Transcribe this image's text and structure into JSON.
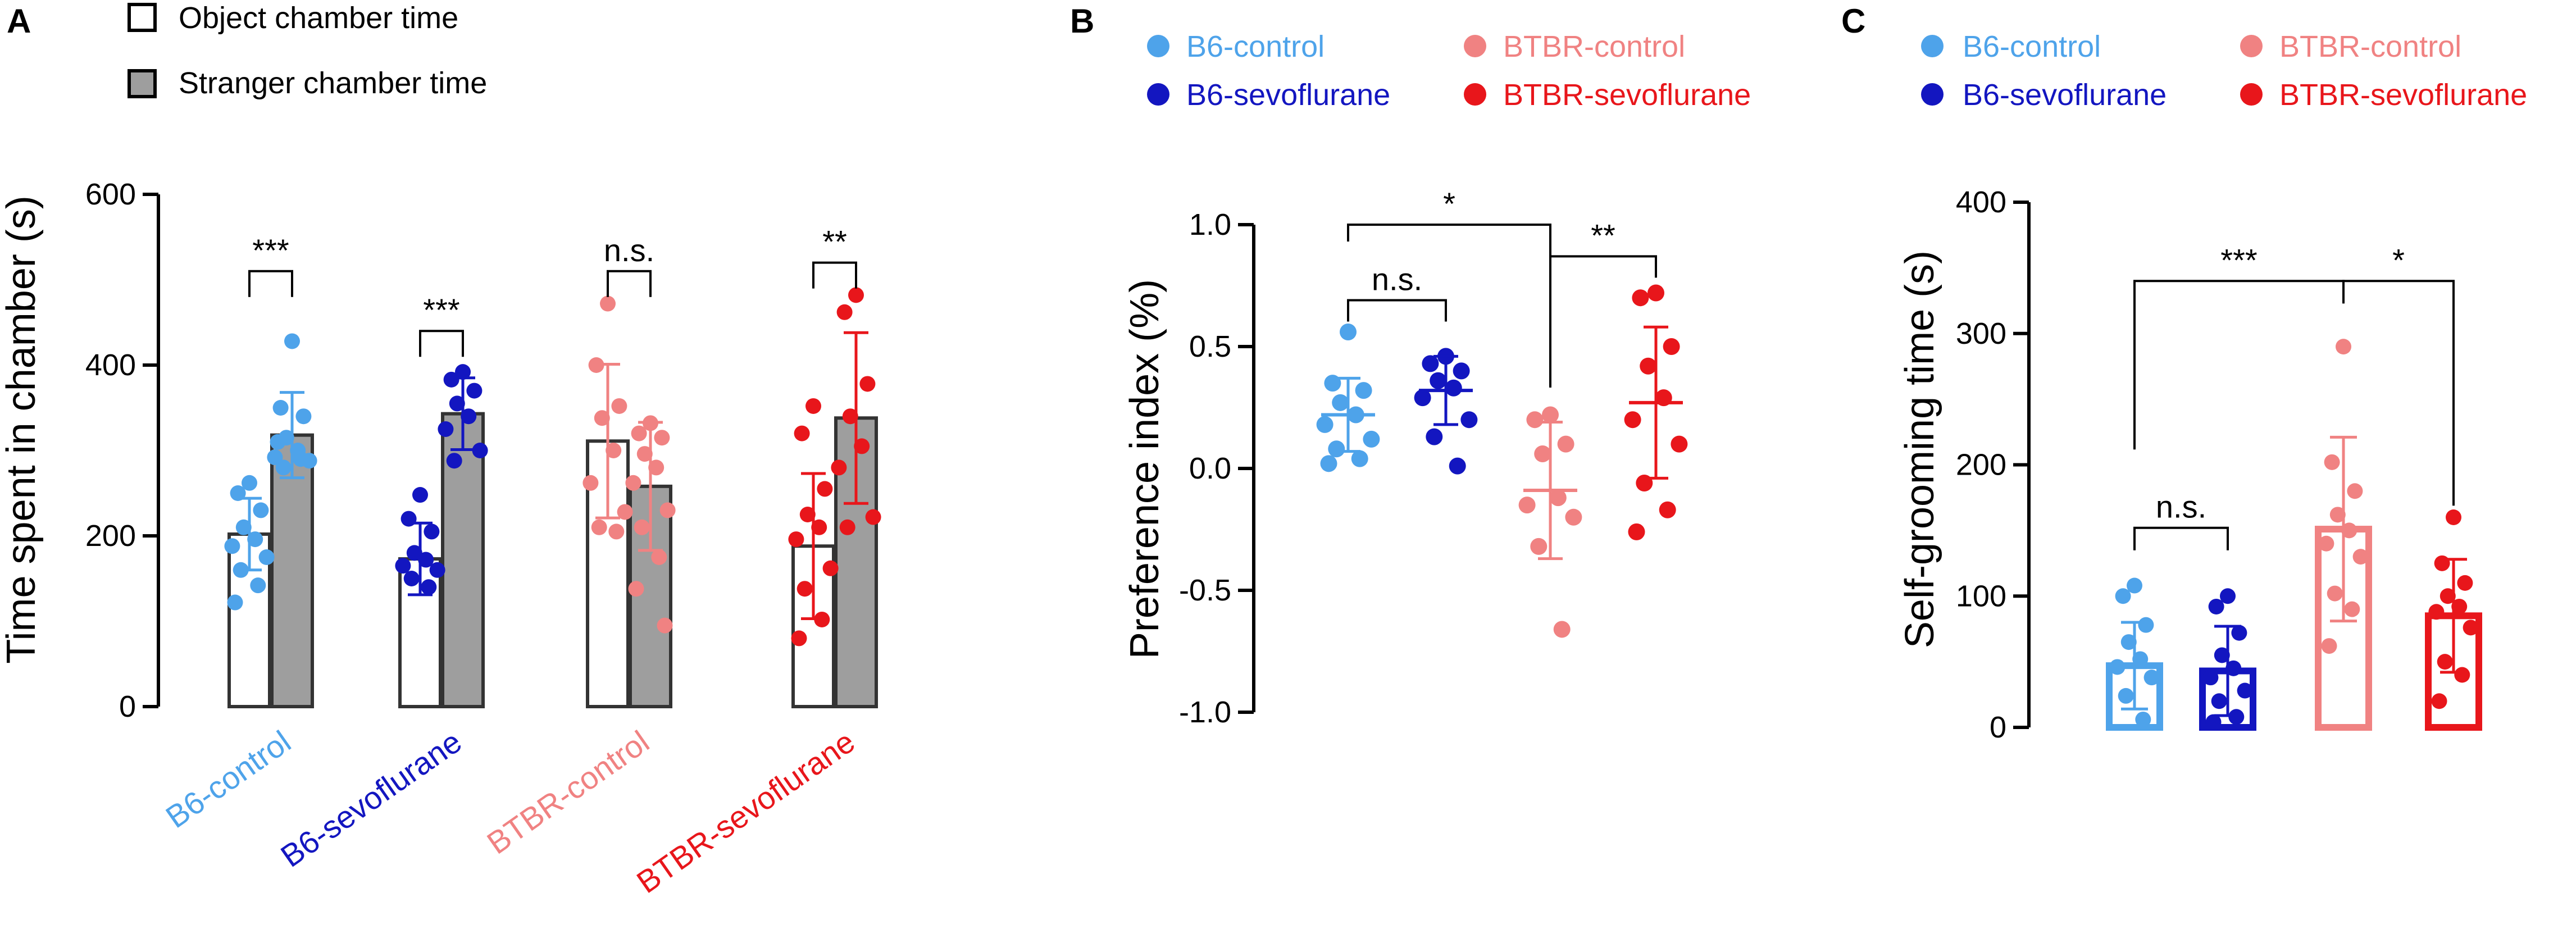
{
  "colors": {
    "b6_control": "#4ea3ea",
    "b6_sevo": "#1316c0",
    "btbr_control": "#f08282",
    "btbr_sevo": "#e8161b",
    "gray_bar": "#9e9e9e",
    "axis": "#000000"
  },
  "panels": {
    "a": {
      "letter": "A"
    },
    "b": {
      "letter": "B"
    },
    "c": {
      "letter": "C"
    }
  },
  "chart_data": [
    {
      "id": "A",
      "type": "bar",
      "ylabel": "Time spent in chamber (s)",
      "ylim": [
        0,
        600
      ],
      "yticks": [
        0,
        200,
        400,
        600
      ],
      "legend": [
        {
          "label": "Object chamber time",
          "style": "open"
        },
        {
          "label": "Stranger chamber time",
          "style": "gray"
        }
      ],
      "groups": [
        {
          "label": "B6-control",
          "color_key": "b6_control",
          "object": {
            "mean": 202,
            "sd": 42,
            "points": [
              262,
              250,
              230,
              210,
              196,
              188,
              175,
              160,
              142,
              122
            ]
          },
          "stranger": {
            "mean": 318,
            "sd": 50,
            "points": [
              428,
              350,
              340,
              315,
              300,
              292,
              288,
              280,
              290,
              310
            ]
          },
          "sig": "***"
        },
        {
          "label": "B6-sevoflurane",
          "color_key": "b6_sevo",
          "object": {
            "mean": 173,
            "sd": 42,
            "points": [
              248,
              220,
              205,
              180,
              172,
              165,
              160,
              150,
              140
            ]
          },
          "stranger": {
            "mean": 343,
            "sd": 42,
            "points": [
              392,
              383,
              370,
              355,
              340,
              325,
              300,
              288
            ]
          },
          "sig": "***"
        },
        {
          "label": "BTBR-control",
          "color_key": "btbr_control",
          "object": {
            "mean": 311,
            "sd": 90,
            "points": [
              472,
              400,
              352,
              338,
              300,
              262,
              228,
              210,
              205
            ]
          },
          "stranger": {
            "mean": 258,
            "sd": 75,
            "points": [
              332,
              320,
              315,
              296,
              280,
              262,
              230,
              210,
              175,
              138,
              95
            ]
          },
          "sig": "n.s."
        },
        {
          "label": "BTBR-sevoflurane",
          "color_key": "btbr_sevo",
          "object": {
            "mean": 188,
            "sd": 85,
            "points": [
              352,
              320,
              255,
              225,
              210,
              196,
              162,
              138,
              102,
              80
            ]
          },
          "stranger": {
            "mean": 338,
            "sd": 100,
            "points": [
              482,
              462,
              378,
              340,
              305,
              280,
              222,
              210
            ]
          },
          "sig": "**"
        }
      ]
    },
    {
      "id": "B",
      "type": "scatter",
      "ylabel": "Preference index (%)",
      "ylim": [
        -1.0,
        1.0
      ],
      "yticks": [
        "1.0",
        "0.5",
        "0.0",
        "-0.5",
        "-1.0"
      ],
      "ytick_values": [
        1.0,
        0.5,
        0.0,
        -0.5,
        -1.0
      ],
      "legend": [
        {
          "label": "B6-control",
          "color_key": "b6_control"
        },
        {
          "label": "BTBR-control",
          "color_key": "btbr_control"
        },
        {
          "label": "B6-sevoflurane",
          "color_key": "b6_sevo"
        },
        {
          "label": "BTBR-sevoflurane",
          "color_key": "btbr_sevo"
        }
      ],
      "groups": [
        {
          "label": "B6-control",
          "color_key": "b6_control",
          "mean": 0.22,
          "sd": 0.15,
          "points": [
            0.56,
            0.35,
            0.32,
            0.27,
            0.22,
            0.18,
            0.12,
            0.08,
            0.04,
            0.02
          ]
        },
        {
          "label": "B6-sevoflurane",
          "color_key": "b6_sevo",
          "mean": 0.32,
          "sd": 0.14,
          "points": [
            0.46,
            0.43,
            0.4,
            0.36,
            0.33,
            0.29,
            0.2,
            0.13,
            0.01
          ]
        },
        {
          "label": "BTBR-control",
          "color_key": "btbr_control",
          "mean": -0.09,
          "sd": 0.28,
          "points": [
            0.22,
            0.2,
            0.1,
            0.06,
            -0.12,
            -0.15,
            -0.2,
            -0.32,
            -0.66
          ]
        },
        {
          "label": "BTBR-sevoflurane",
          "color_key": "btbr_sevo",
          "mean": 0.27,
          "sd": 0.31,
          "points": [
            0.72,
            0.7,
            0.5,
            0.42,
            0.29,
            0.2,
            0.1,
            -0.06,
            -0.17,
            -0.26
          ]
        }
      ],
      "comparisons": [
        {
          "from": 0,
          "to": 2,
          "label": "*",
          "y": 1.0
        },
        {
          "from": 0,
          "to": 1,
          "label": "n.s.",
          "y": 0.69
        },
        {
          "from": 2,
          "to": 3,
          "label": "**",
          "y": 0.87
        }
      ]
    },
    {
      "id": "C",
      "type": "bar",
      "ylabel": "Self-grooming time (s)",
      "ylim": [
        0,
        400
      ],
      "yticks": [
        0,
        100,
        200,
        300,
        400
      ],
      "legend": [
        {
          "label": "B6-control",
          "color_key": "b6_control"
        },
        {
          "label": "BTBR-control",
          "color_key": "btbr_control"
        },
        {
          "label": "B6-sevoflurane",
          "color_key": "b6_sevo"
        },
        {
          "label": "BTBR-sevoflurane",
          "color_key": "btbr_sevo"
        }
      ],
      "groups": [
        {
          "label": "B6-control",
          "color_key": "b6_control",
          "mean": 47,
          "sd": 33,
          "points": [
            108,
            100,
            78,
            65,
            52,
            46,
            38,
            24,
            6
          ]
        },
        {
          "label": "B6-sevoflurane",
          "color_key": "b6_sevo",
          "mean": 43,
          "sd": 34,
          "points": [
            100,
            92,
            72,
            55,
            45,
            38,
            28,
            20,
            8,
            4
          ]
        },
        {
          "label": "BTBR-control",
          "color_key": "btbr_control",
          "mean": 151,
          "sd": 70,
          "points": [
            290,
            202,
            180,
            162,
            150,
            140,
            130,
            102,
            90,
            62
          ]
        },
        {
          "label": "BTBR-sevoflurane",
          "color_key": "btbr_sevo",
          "mean": 85,
          "sd": 43,
          "points": [
            160,
            125,
            110,
            100,
            92,
            88,
            76,
            50,
            40,
            20
          ]
        }
      ],
      "comparisons": [
        {
          "from": 0,
          "to": 2,
          "label": "***",
          "y": 340
        },
        {
          "from": 2,
          "to": 3,
          "label": "*",
          "y": 340
        },
        {
          "from": 0,
          "to": 1,
          "label": "n.s.",
          "y": 152
        }
      ]
    }
  ]
}
